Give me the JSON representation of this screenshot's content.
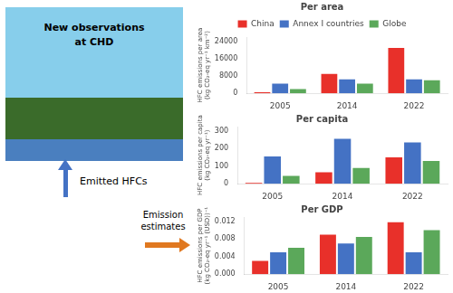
{
  "chart_data": [
    {
      "type": "bar",
      "title": "Per area",
      "categories": [
        "2005",
        "2014",
        "2022"
      ],
      "series": [
        {
          "name": "China",
          "color": "#e8302a",
          "values": [
            500,
            9000,
            21000
          ]
        },
        {
          "name": "Annex I countries",
          "color": "#4472c4",
          "values": [
            4500,
            6500,
            6500
          ]
        },
        {
          "name": "Globe",
          "color": "#5ba85a",
          "values": [
            2000,
            4500,
            6000
          ]
        }
      ],
      "ylim": [
        0,
        26000
      ],
      "yticks": [
        0,
        8000,
        16000,
        24000
      ],
      "ylabel": "HFC emissions per area\n(kg CO₂-eq yr⁻¹ km⁻²)",
      "grid": false,
      "legend": "top",
      "annotations": [
        "New observations",
        "at CHD",
        "Emitted HFCs",
        "Emission",
        "estimates"
      ]
    },
    {
      "type": "bar",
      "title": "Per capita",
      "categories": [
        "2005",
        "2014",
        "2022"
      ],
      "series": [
        {
          "name": "China",
          "color": "#e8302a",
          "values": [
            5,
            65,
            150
          ]
        },
        {
          "name": "Annex I countries",
          "color": "#4472c4",
          "values": [
            155,
            255,
            235
          ]
        },
        {
          "name": "Globe",
          "color": "#5ba85a",
          "values": [
            45,
            90,
            130
          ]
        }
      ],
      "ylim": [
        0,
        325
      ],
      "yticks": [
        0,
        100,
        200,
        300
      ],
      "ylabel": "HFC emissions per capita\n(kg CO₂-eq yr⁻¹)",
      "grid": false
    },
    {
      "type": "bar",
      "title": "Per GDP",
      "categories": [
        "2005",
        "2014",
        "2022"
      ],
      "series": [
        {
          "name": "China",
          "color": "#e8302a",
          "values": [
            0.003,
            0.009,
            0.0118
          ]
        },
        {
          "name": "Annex I countries",
          "color": "#4472c4",
          "values": [
            0.005,
            0.007,
            0.005
          ]
        },
        {
          "name": "Globe",
          "color": "#5ba85a",
          "values": [
            0.006,
            0.0085,
            0.01
          ]
        }
      ],
      "ylim": [
        0,
        0.013
      ],
      "yticks": [
        {
          "value": 0,
          "label": "0.000"
        },
        {
          "value": 0.004,
          "label": "0.004"
        },
        {
          "value": 0.008,
          "label": "0.008"
        },
        {
          "value": 0.012,
          "label": "0.012"
        }
      ],
      "ylabel": "HFC emissions per GDP\n(kg CO₂-eq yr⁻¹ (USD))⁻¹",
      "grid": false
    }
  ]
}
